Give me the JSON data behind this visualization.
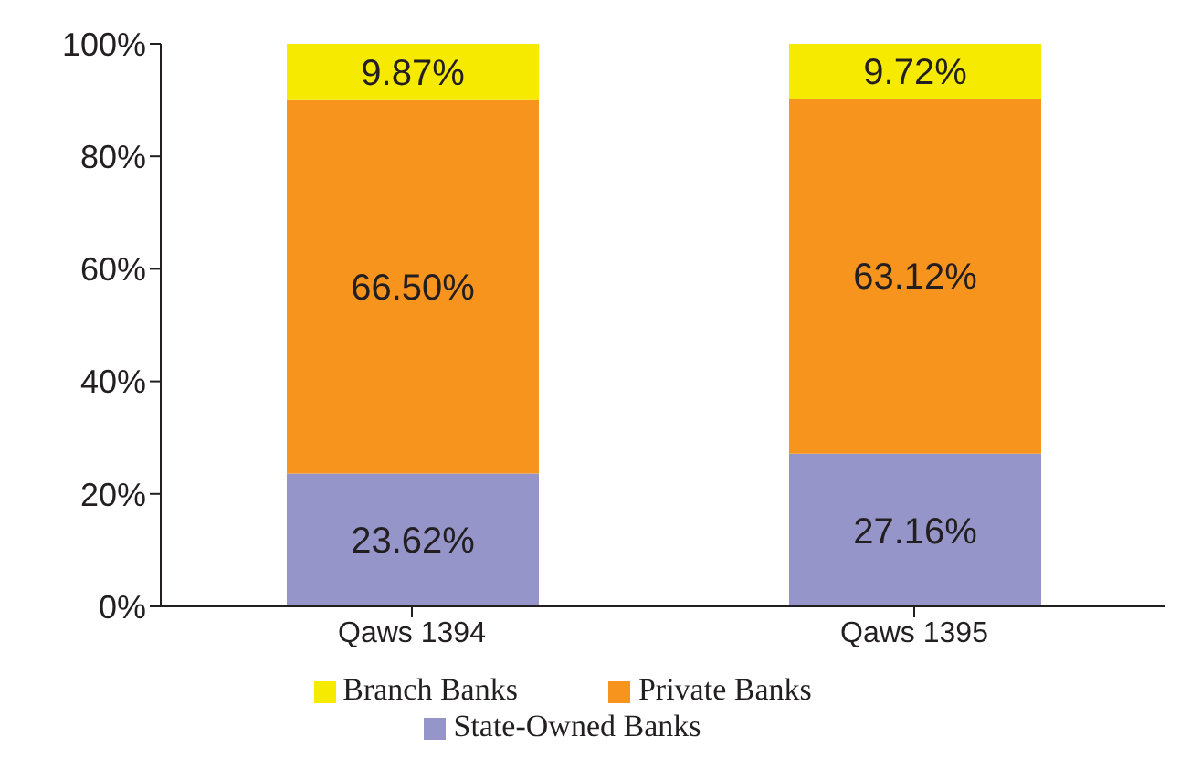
{
  "chart_data": {
    "type": "bar",
    "stacked": true,
    "categories": [
      "Qaws 1394",
      "Qaws 1395"
    ],
    "series": [
      {
        "name": "State-Owned Banks",
        "color": "#9595c9",
        "values": [
          23.62,
          27.16
        ],
        "value_labels": [
          "23.62%",
          "27.16%"
        ]
      },
      {
        "name": "Private Banks",
        "color": "#f7941d",
        "values": [
          66.5,
          63.12
        ],
        "value_labels": [
          "66.50%",
          "63.12%"
        ]
      },
      {
        "name": "Branch Banks",
        "color": "#f5ea00",
        "values": [
          9.87,
          9.72
        ],
        "value_labels": [
          "9.87%",
          "9.72%"
        ]
      }
    ],
    "ylim": [
      0,
      100
    ],
    "yticks": [
      {
        "value": 0,
        "label": "0%"
      },
      {
        "value": 20,
        "label": "20%"
      },
      {
        "value": 40,
        "label": "40%"
      },
      {
        "value": 60,
        "label": "60%"
      },
      {
        "value": 80,
        "label": "80%"
      },
      {
        "value": 100,
        "label": "100%"
      }
    ],
    "grid": false,
    "legend": "bottom"
  }
}
